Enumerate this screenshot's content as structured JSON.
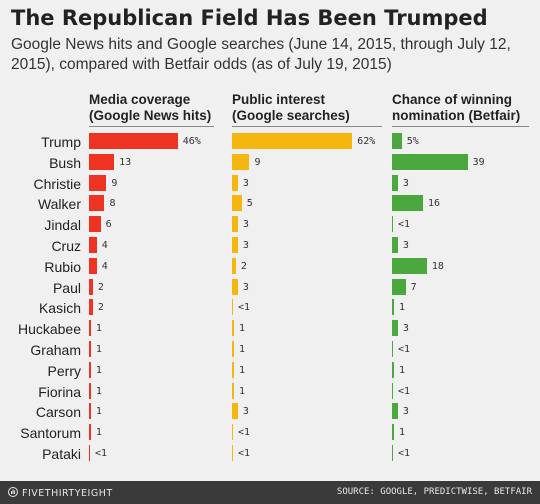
{
  "title": "The Republican Field Has Been Trumped",
  "subtitle": "Google News hits and Google searches (June 14, 2015, through July 12, 2015), compared with Betfair odds (as of July 19, 2015)",
  "footer": {
    "brand": "FIVETHIRTYEIGHT",
    "source": "SOURCE: GOOGLE, PREDICTWISE, BETFAIR"
  },
  "colors": {
    "media": "#ee3322",
    "interest": "#f5b60f",
    "odds": "#4aa83e"
  },
  "chart_data": {
    "type": "bar",
    "categories": [
      "Trump",
      "Bush",
      "Christie",
      "Walker",
      "Jindal",
      "Cruz",
      "Rubio",
      "Paul",
      "Kasich",
      "Huckabee",
      "Graham",
      "Perry",
      "Fiorina",
      "Carson",
      "Santorum",
      "Pataki"
    ],
    "series": [
      {
        "name": "Media coverage (Google News hits)",
        "header": [
          "Media coverage",
          "(Google News hits)"
        ],
        "values": [
          46,
          13,
          9,
          8,
          6,
          4,
          4,
          2,
          2,
          1,
          1,
          1,
          1,
          1,
          1,
          0.5
        ],
        "labels": [
          "46%",
          "13",
          "9",
          "8",
          "6",
          "4",
          "4",
          "2",
          "2",
          "1",
          "1",
          "1",
          "1",
          "1",
          "1",
          "<1"
        ]
      },
      {
        "name": "Public interest (Google searches)",
        "header": [
          "Public interest",
          "(Google searches)"
        ],
        "values": [
          62,
          9,
          3,
          5,
          3,
          3,
          2,
          3,
          0.5,
          1,
          1,
          1,
          1,
          3,
          0.5,
          0.5
        ],
        "labels": [
          "62%",
          "9",
          "3",
          "5",
          "3",
          "3",
          "2",
          "3",
          "<1",
          "1",
          "1",
          "1",
          "1",
          "3",
          "<1",
          "<1"
        ]
      },
      {
        "name": "Chance of winning nomination (Betfair)",
        "header": [
          "Chance of winning",
          "nomination (Betfair)"
        ],
        "values": [
          5,
          39,
          3,
          16,
          0.5,
          3,
          18,
          7,
          1,
          3,
          0.5,
          1,
          0.5,
          3,
          1,
          0.5
        ],
        "labels": [
          "5%",
          "39",
          "3",
          "16",
          "<1",
          "3",
          "18",
          "7",
          "1",
          "3",
          "<1",
          "1",
          "<1",
          "3",
          "1",
          "<1"
        ]
      }
    ]
  }
}
